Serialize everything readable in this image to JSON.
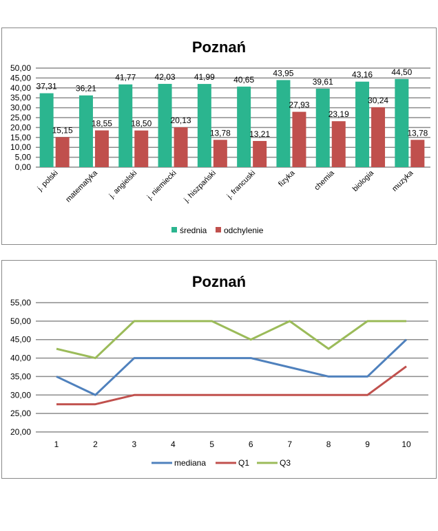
{
  "chart_data": [
    {
      "type": "bar",
      "title": "Poznań",
      "categories": [
        "j. polski",
        "matematyka",
        "j. angielski",
        "j. niemiecki",
        "j. hiszpański",
        "j. francuski",
        "fizyka",
        "chemia",
        "biologia",
        "muzyka"
      ],
      "series": [
        {
          "name": "średnia",
          "color": "#2bb58f",
          "values": [
            37.31,
            36.21,
            41.77,
            42.03,
            41.99,
            40.65,
            43.95,
            39.61,
            43.16,
            44.5
          ],
          "labels": [
            "37,31",
            "36,21",
            "41,77",
            "42,03",
            "41,99",
            "40,65",
            "43,95",
            "39,61",
            "43,16",
            "44,50"
          ]
        },
        {
          "name": "odchylenie",
          "color": "#c0504d",
          "values": [
            15.15,
            18.55,
            18.5,
            20.13,
            13.78,
            13.21,
            27.93,
            23.19,
            30.24,
            13.78
          ],
          "labels": [
            "15,15",
            "18,55",
            "18,50",
            "20,13",
            "13,78",
            "13,21",
            "27,93",
            "23,19",
            "30,24",
            "13,78"
          ]
        }
      ],
      "ylim": [
        0,
        50
      ],
      "yticks": [
        "0,00",
        "5,00",
        "10,00",
        "15,00",
        "20,00",
        "25,00",
        "30,00",
        "35,00",
        "40,00",
        "45,00",
        "50,00"
      ],
      "grid": true,
      "legend": "bottom"
    },
    {
      "type": "line",
      "title": "Poznań",
      "x": [
        "1",
        "2",
        "3",
        "4",
        "5",
        "6",
        "7",
        "8",
        "9",
        "10"
      ],
      "series": [
        {
          "name": "mediana",
          "color": "#4f81bd",
          "values": [
            35,
            30,
            40,
            40,
            40,
            40,
            37.5,
            35,
            35,
            45
          ]
        },
        {
          "name": "Q1",
          "color": "#c0504d",
          "values": [
            27.5,
            27.5,
            30,
            30,
            30,
            30,
            30,
            30,
            30,
            37.75
          ]
        },
        {
          "name": "Q3",
          "color": "#9bbb59",
          "values": [
            42.5,
            40,
            50,
            50,
            50,
            45,
            50,
            42.5,
            50,
            50
          ]
        }
      ],
      "ylim": [
        20,
        55
      ],
      "yticks": [
        "20,00",
        "25,00",
        "30,00",
        "35,00",
        "40,00",
        "45,00",
        "50,00",
        "55,00"
      ],
      "grid": true,
      "legend": "bottom"
    }
  ]
}
